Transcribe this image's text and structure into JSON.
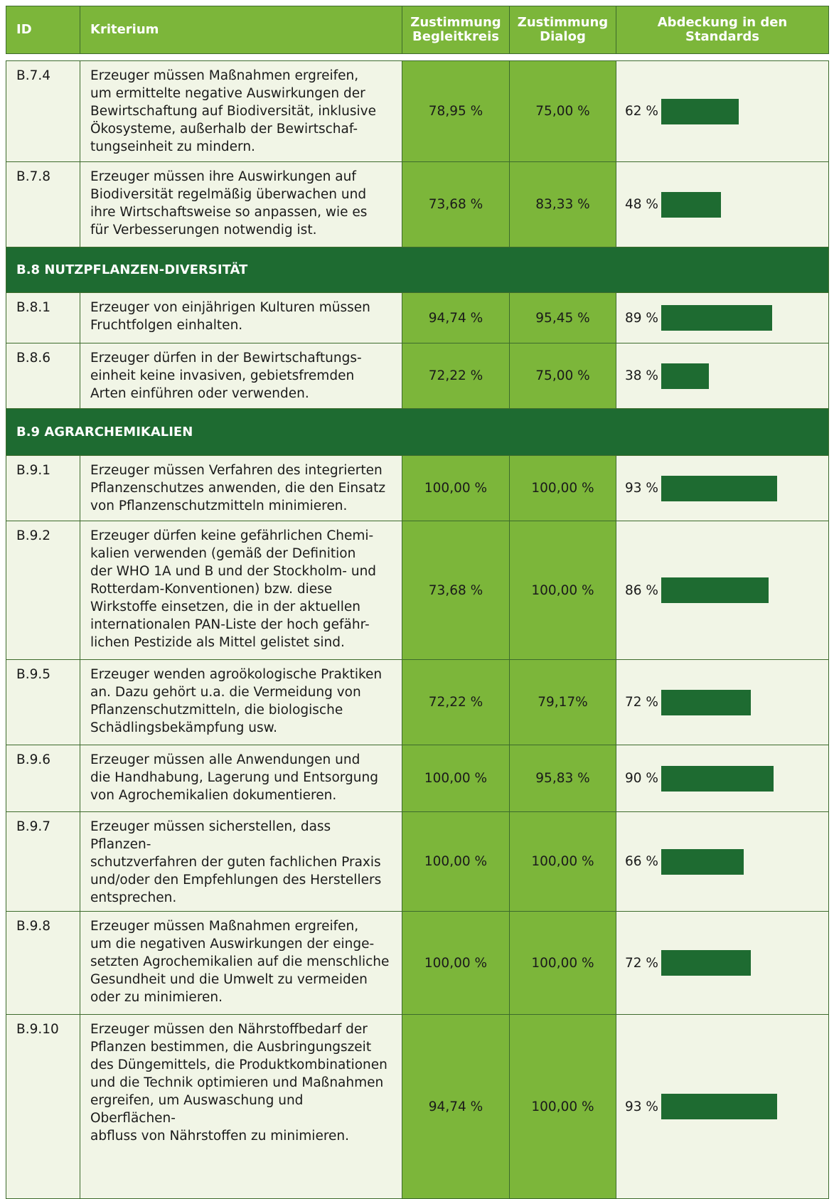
{
  "header": {
    "columns": [
      "ID",
      "Kriterium",
      "Zustimmung\nBegleitkreis",
      "Zustimmung\nDialog",
      "Abdeckung in den\nStandards"
    ]
  },
  "rows": [
    {
      "id": "B.7.4",
      "text": "Erzeuger müssen Maßnahmen ergreifen,\num ermittelte negative Auswirkungen der\nBewirtschaftung auf Biodiversität, inklusive\nÖkosysteme, außerhalb der Bewirtschaf-\ntungseinheit zu mindern.",
      "begleitkreis": "78,95 %",
      "dialog": "75,00 %",
      "coverage": {
        "value": 62,
        "label": "62 %"
      }
    },
    {
      "id": "B.7.8",
      "text": "Erzeuger müssen ihre Auswirkungen auf\nBiodiversität regelmäßig überwachen und\nihre Wirtschaftsweise so anpassen, wie es\nfür Verbesserungen notwendig ist.",
      "begleitkreis": "73,68 %",
      "dialog": "83,33 %",
      "coverage": {
        "value": 48,
        "label": "48 %"
      }
    },
    {
      "section": "B.8  NUTZPFLANZEN-DIVERSITÄT"
    },
    {
      "id": "B.8.1",
      "text": "Erzeuger von einjährigen Kulturen müssen\nFruchtfolgen einhalten.",
      "begleitkreis": "94,74 %",
      "dialog": "95,45 %",
      "coverage": {
        "value": 89,
        "label": "89 %"
      }
    },
    {
      "id": "B.8.6",
      "text": "Erzeuger dürfen in der Bewirtschaftungs-\neinheit keine invasiven, gebietsfremden\nArten einführen oder verwenden.",
      "begleitkreis": "72,22 %",
      "dialog": "75,00 %",
      "coverage": {
        "value": 38,
        "label": "38 %"
      }
    },
    {
      "section": "B.9  AGRARCHEMIKALIEN"
    },
    {
      "id": "B.9.1",
      "text": "Erzeuger müssen Verfahren des integrierten\nPflanzenschutzes anwenden, die den Einsatz\nvon Pflanzenschutzmitteln minimieren.",
      "begleitkreis": "100,00 %",
      "dialog": "100,00 %",
      "coverage": {
        "value": 93,
        "label": "93 %"
      }
    },
    {
      "id": "B.9.2",
      "text": "Erzeuger dürfen keine gefährlichen Chemi-\nkalien verwenden (gemäß der Definition\nder WHO 1A und B und der Stockholm- und\nRotterdam-Konventionen) bzw. diese\nWirkstoffe einsetzen, die in der aktuellen\ninternationalen PAN-Liste der hoch gefähr-\nlichen Pestizide als Mittel gelistet sind.",
      "begleitkreis": "73,68 %",
      "dialog": "100,00 %",
      "coverage": {
        "value": 86,
        "label": "86 %"
      }
    },
    {
      "id": "B.9.5",
      "text": "Erzeuger wenden agroökologische Praktiken\nan. Dazu gehört u.a. die Vermeidung von\nPflanzenschutzmitteln, die biologische\nSchädlingsbekämpfung usw.",
      "begleitkreis": "72,22 %",
      "dialog": "79,17%",
      "coverage": {
        "value": 72,
        "label": "72 %"
      }
    },
    {
      "id": "B.9.6",
      "text": "Erzeuger müssen alle Anwendungen und\ndie Handhabung, Lagerung und Entsorgung\nvon Agrochemikalien dokumentieren.",
      "begleitkreis": "100,00 %",
      "dialog": "95,83 %",
      "coverage": {
        "value": 90,
        "label": "90 %"
      }
    },
    {
      "id": "B.9.7",
      "text": "Erzeuger müssen sicherstellen, dass Pflanzen-\nschutzverfahren der guten fachlichen Praxis\nund/oder den Empfehlungen des Herstellers\nentsprechen.",
      "begleitkreis": "100,00 %",
      "dialog": "100,00 %",
      "coverage": {
        "value": 66,
        "label": "66 %"
      }
    },
    {
      "id": "B.9.8",
      "text": "Erzeuger müssen Maßnahmen ergreifen,\num die negativen Auswirkungen der einge-\nsetzten Agrochemikalien auf die menschliche\nGesundheit und die Umwelt zu vermeiden\noder zu minimieren.",
      "begleitkreis": "100,00 %",
      "dialog": "100,00 %",
      "coverage": {
        "value": 72,
        "label": "72 %"
      }
    },
    {
      "id": "B.9.10",
      "text": "Erzeuger müssen den Nährstoffbedarf der\nPflanzen bestimmen, die Ausbringungszeit\ndes Düngemittels, die Produktkombinationen\nund die Technik optimieren und Maßnahmen\nergreifen, um Auswaschung und Oberflächen-\nabfluss von Nährstoffen zu minimieren.",
      "begleitkreis": "94,74 %",
      "dialog": "100,00 %",
      "coverage": {
        "value": 93,
        "label": "93 %"
      }
    }
  ]
}
